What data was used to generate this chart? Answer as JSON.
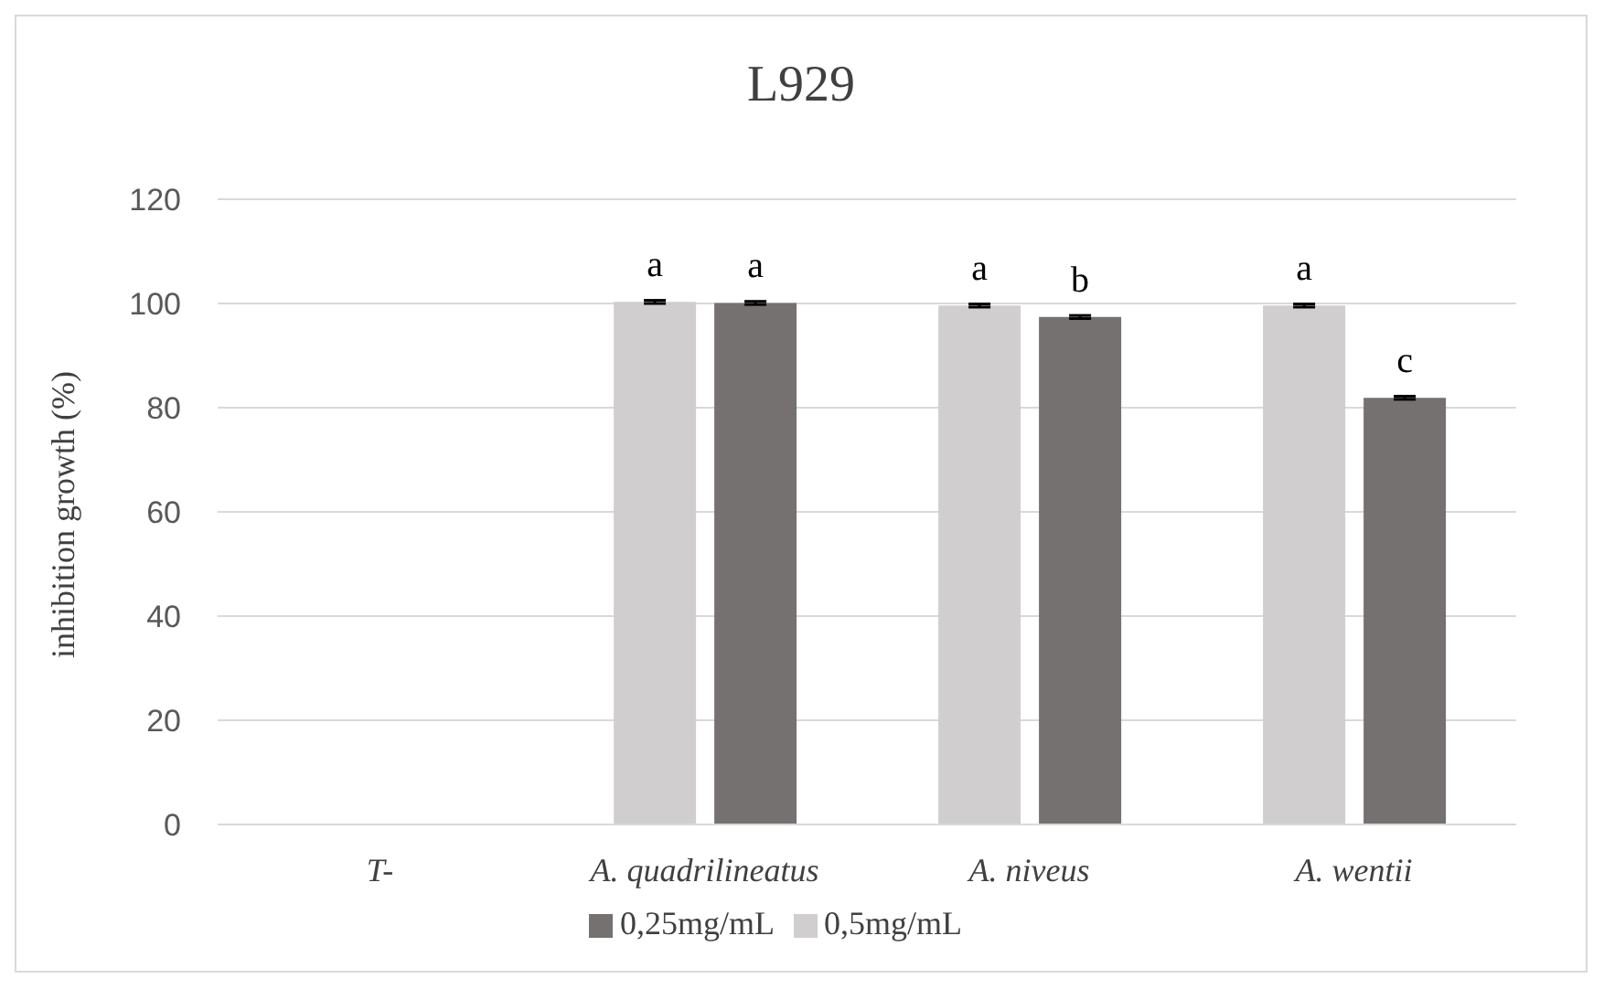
{
  "chart_data": {
    "type": "bar",
    "title": "L929",
    "ylabel": "inhibition growth (%)",
    "categories": [
      "T-",
      "A. quadrilineatus",
      "A. niveus",
      "A. wentii"
    ],
    "series": [
      {
        "name": "0,5mg/mL",
        "color": "#d0cece",
        "values": [
          0,
          100.3,
          99.6,
          99.6
        ],
        "errors": [
          null,
          0.3,
          0.3,
          0.3
        ],
        "value_labels": [
          null,
          "a",
          "a",
          "a"
        ]
      },
      {
        "name": "0,25mg/mL",
        "color": "#767171",
        "values": [
          0,
          100.1,
          97.4,
          81.9
        ],
        "errors": [
          null,
          0.3,
          0.3,
          0.3
        ],
        "value_labels": [
          null,
          "a",
          "b",
          "c"
        ]
      }
    ],
    "ylim": [
      0,
      120
    ],
    "yticks": [
      0,
      20,
      40,
      60,
      80,
      100,
      120
    ],
    "grid": "y",
    "legend": "bottom"
  }
}
